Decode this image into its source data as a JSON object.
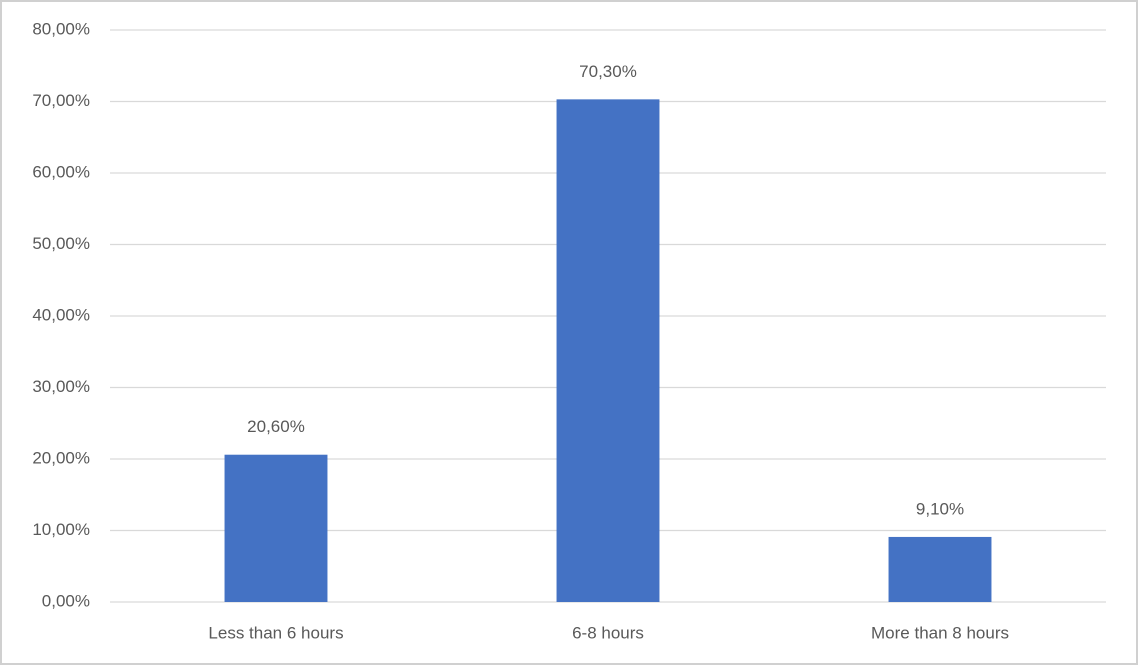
{
  "chart_data": {
    "type": "bar",
    "categories": [
      "Less than 6 hours",
      "6-8 hours",
      "More than 8 hours"
    ],
    "values": [
      20.6,
      70.3,
      9.1
    ],
    "value_labels": [
      "20,60%",
      "70,30%",
      "9,10%"
    ],
    "color": "#4472c4",
    "ylim": [
      0,
      80
    ],
    "yticks": [
      {
        "value": 0,
        "label": "0,00%"
      },
      {
        "value": 10,
        "label": "10,00%"
      },
      {
        "value": 20,
        "label": "20,00%"
      },
      {
        "value": 30,
        "label": "30,00%"
      },
      {
        "value": 40,
        "label": "40,00%"
      },
      {
        "value": 50,
        "label": "50,00%"
      },
      {
        "value": 60,
        "label": "60,00%"
      },
      {
        "value": 70,
        "label": "70,00%"
      },
      {
        "value": 80,
        "label": "80,00%"
      }
    ],
    "grid": true
  }
}
